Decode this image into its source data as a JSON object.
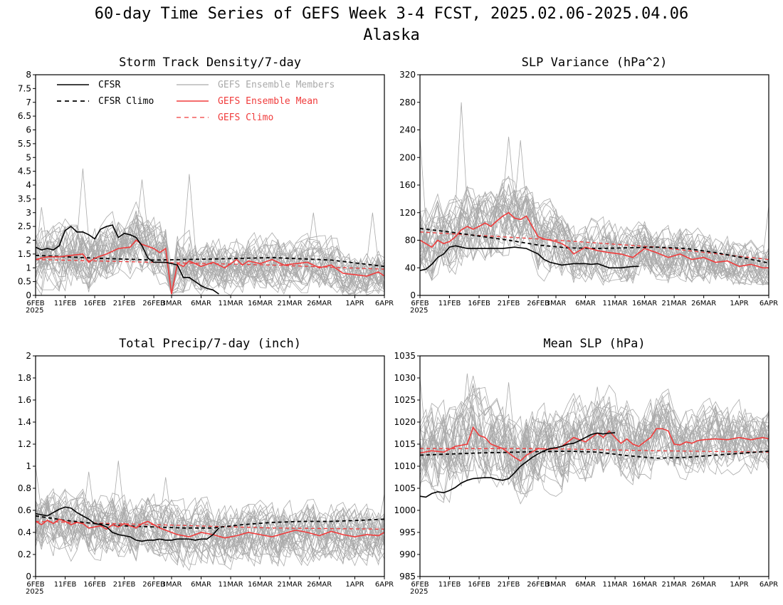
{
  "figure": {
    "title_line1": "60-day Time Series of GEFS Week 3-4 FCST, 2025.02.06-2025.04.06",
    "title_line2": "Alaska"
  },
  "colors": {
    "cfsr": "#000000",
    "ensemble_members": "#aaaaaa",
    "ensemble_mean": "#f03c3c",
    "gefs_climo": "#f03c3c",
    "legend_members_text": "#aaaaaa",
    "legend_red_text": "#f03c3c"
  },
  "legend": {
    "cfsr": "CFSR",
    "cfsr_climo": "CFSR Climo",
    "members": "GEFS Ensemble Members",
    "mean": "GEFS Ensemble Mean",
    "gefs_climo": "GEFS Climo"
  },
  "x_axis": {
    "n_days": 60,
    "year_label": "2025",
    "ticks": [
      {
        "day": 0,
        "label": "6FEB"
      },
      {
        "day": 5,
        "label": "11FEB"
      },
      {
        "day": 10,
        "label": "16FEB"
      },
      {
        "day": 15,
        "label": "21FEB"
      },
      {
        "day": 20,
        "label": "26FEB"
      },
      {
        "day": 23,
        "label": "3MAR"
      },
      {
        "day": 28,
        "label": "6MAR"
      },
      {
        "day": 33,
        "label": "11MAR"
      },
      {
        "day": 38,
        "label": "16MAR"
      },
      {
        "day": 43,
        "label": "21MAR"
      },
      {
        "day": 48,
        "label": "26MAR"
      },
      {
        "day": 54,
        "label": "1APR"
      },
      {
        "day": 59,
        "label": "6APR"
      }
    ]
  },
  "chart_data": [
    {
      "type": "line",
      "title": "Storm Track Density/7-day",
      "ylim": [
        0,
        8
      ],
      "yticks": [
        "0",
        "0.5",
        "1",
        "1.5",
        "2",
        "2.5",
        "3",
        "3.5",
        "4",
        "4.5",
        "5",
        "5.5",
        "6",
        "6.5",
        "7",
        "7.5",
        "8"
      ],
      "ytick_values": [
        0,
        0.5,
        1,
        1.5,
        2,
        2.5,
        3,
        3.5,
        4,
        4.5,
        5,
        5.5,
        6,
        6.5,
        7,
        7.5,
        8
      ],
      "has_legend": true,
      "members": {
        "count": 30,
        "spread_start": 0.85,
        "spread_end": 0.55,
        "min": 0,
        "spikes": [
          [
            26,
            4.4
          ],
          [
            1,
            3.2
          ],
          [
            8,
            4.6
          ],
          [
            18,
            4.2
          ],
          [
            47,
            3.0
          ],
          [
            57,
            3.0
          ]
        ]
      },
      "series": [
        {
          "name": "CFSR",
          "role": "cfsr",
          "x": [
            0,
            1,
            2,
            3,
            4,
            5,
            6,
            7,
            8,
            9,
            10,
            11,
            12,
            13,
            14,
            15,
            16,
            17,
            18,
            19,
            20,
            21,
            22,
            23,
            24,
            25,
            26,
            27,
            28,
            29,
            30,
            31
          ],
          "y": [
            1.75,
            1.65,
            1.7,
            1.65,
            1.8,
            2.35,
            2.5,
            2.3,
            2.3,
            2.2,
            2.05,
            2.4,
            2.5,
            2.55,
            2.1,
            2.25,
            2.2,
            2.1,
            1.8,
            1.35,
            1.2,
            1.2,
            1.2,
            1.15,
            1.1,
            0.65,
            0.65,
            0.5,
            0.35,
            0.25,
            0.2,
            0.05
          ]
        },
        {
          "name": "CFSR Climo",
          "role": "cfsr_climo",
          "x": [
            0,
            10,
            20,
            30,
            40,
            50,
            59
          ],
          "y": [
            1.45,
            1.35,
            1.28,
            1.32,
            1.37,
            1.28,
            1.05
          ]
        },
        {
          "name": "GEFS Ensemble Mean",
          "role": "mean",
          "x": [
            0,
            2,
            4,
            6,
            8,
            9,
            10,
            12,
            14,
            16,
            17,
            18,
            20,
            21,
            22,
            23,
            24,
            25,
            26,
            28,
            30,
            32,
            34,
            35,
            36,
            38,
            40,
            42,
            44,
            46,
            48,
            50,
            52,
            54,
            56,
            58,
            59
          ],
          "y": [
            1.3,
            1.4,
            1.4,
            1.45,
            1.5,
            1.2,
            1.35,
            1.5,
            1.7,
            1.75,
            2.0,
            1.85,
            1.7,
            1.55,
            1.7,
            0.05,
            1.15,
            1.05,
            1.25,
            1.05,
            1.2,
            1.0,
            1.3,
            1.1,
            1.25,
            1.15,
            1.3,
            1.1,
            1.15,
            1.2,
            1.0,
            1.1,
            0.8,
            0.75,
            0.7,
            0.85,
            0.7
          ]
        },
        {
          "name": "GEFS Climo",
          "role": "gefs_climo",
          "x": [
            0,
            20,
            40,
            59
          ],
          "y": [
            1.3,
            1.2,
            1.1,
            0.95
          ]
        }
      ]
    },
    {
      "type": "line",
      "title": "SLP Variance (hPa^2)",
      "ylim": [
        0,
        320
      ],
      "yticks": [
        "0",
        "40",
        "80",
        "120",
        "160",
        "200",
        "240",
        "280",
        "320"
      ],
      "ytick_values": [
        0,
        40,
        80,
        120,
        160,
        200,
        240,
        280,
        320
      ],
      "has_legend": false,
      "members": {
        "count": 30,
        "spread_start": 40,
        "spread_end": 22,
        "min": 15,
        "spikes": [
          [
            7,
            280
          ],
          [
            15,
            230
          ],
          [
            0,
            230
          ],
          [
            17,
            225
          ],
          [
            59,
            130
          ]
        ]
      },
      "series": [
        {
          "name": "CFSR",
          "role": "cfsr",
          "x": [
            0,
            1,
            2,
            3,
            4,
            5,
            6,
            7,
            8,
            10,
            12,
            14,
            16,
            18,
            20,
            21,
            22,
            24,
            26,
            28,
            29,
            30,
            32,
            34,
            36,
            37
          ],
          "y": [
            36,
            38,
            45,
            55,
            60,
            70,
            72,
            70,
            68,
            68,
            68,
            68,
            70,
            68,
            60,
            52,
            48,
            44,
            46,
            46,
            45,
            46,
            40,
            40,
            42,
            42
          ]
        },
        {
          "name": "CFSR Climo",
          "role": "cfsr_climo",
          "x": [
            0,
            5,
            10,
            15,
            20,
            25,
            30,
            35,
            40,
            45,
            50,
            55,
            59
          ],
          "y": [
            97,
            92,
            86,
            80,
            73,
            69,
            68,
            69,
            70,
            68,
            62,
            54,
            47
          ]
        },
        {
          "name": "GEFS Ensemble Mean",
          "role": "mean",
          "x": [
            0,
            1,
            2,
            3,
            4,
            5,
            6,
            7,
            8,
            9,
            10,
            11,
            12,
            13,
            14,
            15,
            16,
            17,
            18,
            19,
            20,
            21,
            22,
            23,
            24,
            25,
            26,
            28,
            30,
            32,
            34,
            36,
            38,
            40,
            42,
            44,
            46,
            48,
            50,
            52,
            54,
            56,
            58,
            59
          ],
          "y": [
            80,
            75,
            70,
            80,
            75,
            78,
            85,
            95,
            100,
            96,
            100,
            105,
            100,
            108,
            115,
            120,
            112,
            110,
            115,
            100,
            85,
            82,
            80,
            78,
            75,
            70,
            60,
            70,
            65,
            62,
            60,
            55,
            68,
            62,
            55,
            60,
            52,
            55,
            48,
            50,
            42,
            45,
            40,
            40
          ]
        },
        {
          "name": "GEFS Climo",
          "role": "gefs_climo",
          "x": [
            0,
            20,
            40,
            59
          ],
          "y": [
            92,
            82,
            70,
            52
          ]
        }
      ]
    },
    {
      "type": "line",
      "title": "Total Precip/7-day (inch)",
      "ylim": [
        0,
        2
      ],
      "yticks": [
        "0",
        "0.2",
        "0.4",
        "0.6",
        "0.8",
        "1",
        "1.2",
        "1.4",
        "1.6",
        "1.8",
        "2"
      ],
      "ytick_values": [
        0,
        0.2,
        0.4,
        0.6,
        0.8,
        1,
        1.2,
        1.4,
        1.6,
        1.8,
        2
      ],
      "has_legend": false,
      "members": {
        "count": 30,
        "spread_start": 0.2,
        "spread_end": 0.18,
        "min": 0.05,
        "spikes": [
          [
            14,
            1.05
          ],
          [
            0,
            1.0
          ],
          [
            9,
            0.95
          ],
          [
            22,
            0.9
          ],
          [
            59,
            0.75
          ]
        ]
      },
      "series": [
        {
          "name": "CFSR",
          "role": "cfsr",
          "x": [
            0,
            2,
            3,
            4,
            5,
            6,
            7,
            8,
            9,
            10,
            11,
            12,
            13,
            14,
            15,
            16,
            17,
            18,
            19,
            20,
            21,
            22,
            23,
            24,
            25,
            26,
            27,
            28,
            29,
            30,
            31
          ],
          "y": [
            0.57,
            0.55,
            0.58,
            0.61,
            0.63,
            0.62,
            0.58,
            0.55,
            0.52,
            0.48,
            0.47,
            0.45,
            0.4,
            0.38,
            0.37,
            0.36,
            0.33,
            0.32,
            0.33,
            0.33,
            0.34,
            0.33,
            0.33,
            0.34,
            0.34,
            0.34,
            0.33,
            0.34,
            0.34,
            0.38,
            0.44
          ]
        },
        {
          "name": "CFSR Climo",
          "role": "cfsr_climo",
          "x": [
            0,
            5,
            10,
            15,
            20,
            25,
            30,
            35,
            40,
            45,
            50,
            55,
            59
          ],
          "y": [
            0.55,
            0.51,
            0.48,
            0.46,
            0.45,
            0.44,
            0.44,
            0.47,
            0.49,
            0.5,
            0.5,
            0.51,
            0.52
          ]
        },
        {
          "name": "GEFS Ensemble Mean",
          "role": "mean",
          "x": [
            0,
            1,
            2,
            3,
            4,
            5,
            6,
            7,
            8,
            9,
            10,
            11,
            12,
            13,
            14,
            15,
            16,
            17,
            18,
            19,
            20,
            21,
            22,
            23,
            24,
            26,
            28,
            30,
            32,
            34,
            36,
            38,
            40,
            42,
            44,
            46,
            48,
            50,
            52,
            54,
            56,
            58,
            59
          ],
          "y": [
            0.5,
            0.47,
            0.51,
            0.48,
            0.52,
            0.5,
            0.47,
            0.49,
            0.48,
            0.44,
            0.45,
            0.46,
            0.43,
            0.47,
            0.45,
            0.48,
            0.46,
            0.44,
            0.48,
            0.5,
            0.47,
            0.44,
            0.42,
            0.4,
            0.38,
            0.36,
            0.4,
            0.38,
            0.35,
            0.37,
            0.4,
            0.38,
            0.36,
            0.39,
            0.42,
            0.4,
            0.37,
            0.41,
            0.38,
            0.36,
            0.38,
            0.37,
            0.4
          ]
        },
        {
          "name": "GEFS Climo",
          "role": "gefs_climo",
          "x": [
            0,
            20,
            40,
            59
          ],
          "y": [
            0.5,
            0.47,
            0.44,
            0.43
          ]
        }
      ]
    },
    {
      "type": "line",
      "title": "Mean SLP (hPa)",
      "ylim": [
        985,
        1035
      ],
      "yticks": [
        "985",
        "990",
        "995",
        "1000",
        "1005",
        "1010",
        "1015",
        "1020",
        "1025",
        "1030",
        "1035"
      ],
      "ytick_values": [
        985,
        990,
        995,
        1000,
        1005,
        1010,
        1015,
        1020,
        1025,
        1030,
        1035
      ],
      "has_legend": false,
      "members": {
        "count": 30,
        "spread_start": 7,
        "spread_end": 5,
        "min": 995,
        "spikes": [
          [
            8,
            1031
          ],
          [
            0,
            1030
          ],
          [
            15,
            1029
          ],
          [
            30,
            1028
          ],
          [
            59,
            1022
          ]
        ]
      },
      "series": [
        {
          "name": "CFSR",
          "role": "cfsr",
          "x": [
            0,
            1,
            2,
            3,
            4,
            5,
            6,
            7,
            8,
            9,
            10,
            11,
            12,
            13,
            14,
            15,
            16,
            17,
            18,
            19,
            20,
            21,
            22,
            23,
            24,
            25,
            26,
            27,
            28,
            29,
            30,
            31,
            32,
            33
          ],
          "y": [
            1003.2,
            1003.0,
            1003.8,
            1004.2,
            1004.0,
            1004.5,
            1005.2,
            1006.2,
            1006.8,
            1007.2,
            1007.3,
            1007.4,
            1007.4,
            1007.0,
            1006.8,
            1007.2,
            1008.5,
            1010.0,
            1011.0,
            1012.0,
            1012.8,
            1013.5,
            1014.0,
            1014.2,
            1014.5,
            1015.0,
            1015.2,
            1015.8,
            1016.5,
            1017.2,
            1017.5,
            1017.3,
            1017.5,
            1017.6
          ]
        },
        {
          "name": "CFSR Climo",
          "role": "cfsr_climo",
          "x": [
            0,
            10,
            20,
            25,
            30,
            35,
            40,
            45,
            50,
            55,
            59
          ],
          "y": [
            1012.5,
            1013.0,
            1013.3,
            1013.4,
            1013.2,
            1012.4,
            1011.8,
            1012.0,
            1012.5,
            1013.0,
            1013.4
          ]
        },
        {
          "name": "GEFS Ensemble Mean",
          "role": "mean",
          "x": [
            0,
            2,
            4,
            6,
            8,
            9,
            10,
            11,
            12,
            14,
            16,
            17,
            18,
            20,
            22,
            24,
            26,
            28,
            30,
            31,
            32,
            33,
            34,
            35,
            36,
            37,
            38,
            39,
            40,
            41,
            42,
            43,
            44,
            45,
            46,
            47,
            48,
            50,
            52,
            54,
            56,
            58,
            59
          ],
          "y": [
            1013.0,
            1013.5,
            1013.2,
            1014.5,
            1015.0,
            1018.8,
            1017.0,
            1016.5,
            1015.0,
            1014.0,
            1012.0,
            1011.2,
            1012.5,
            1014.0,
            1013.8,
            1014.5,
            1016.5,
            1015.5,
            1017.5,
            1016.5,
            1018.0,
            1016.5,
            1015.2,
            1016.2,
            1015.0,
            1014.5,
            1015.5,
            1016.5,
            1018.5,
            1018.5,
            1018.0,
            1015.0,
            1014.8,
            1015.5,
            1015.2,
            1015.8,
            1016.0,
            1016.2,
            1016.0,
            1016.5,
            1016.0,
            1016.5,
            1016.2
          ]
        },
        {
          "name": "GEFS Climo",
          "role": "gefs_climo",
          "x": [
            0,
            20,
            40,
            59
          ],
          "y": [
            1014.0,
            1014.0,
            1013.5,
            1013.2
          ]
        }
      ]
    }
  ]
}
